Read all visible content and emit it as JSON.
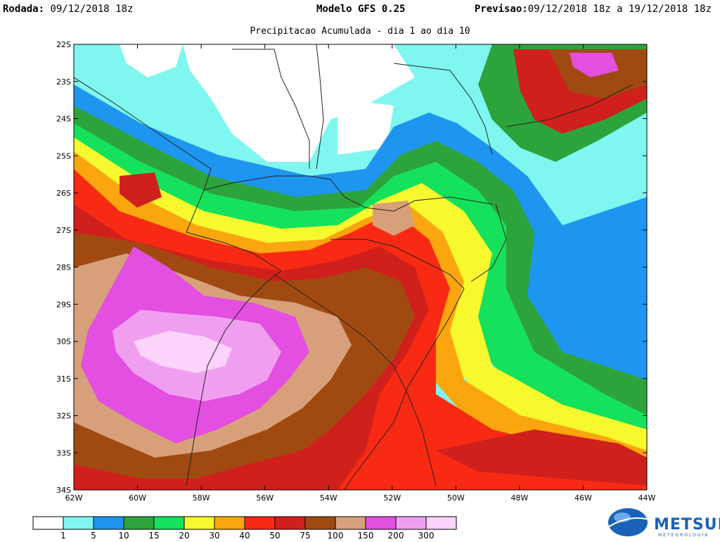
{
  "header": {
    "rodada_label": "Rodada:",
    "rodada_value": "09/12/2018 18z",
    "model_label": "Modelo GFS 0.25",
    "previsao_label": "Previsao:",
    "previsao_value": "09/12/2018 18z a 19/12/2018 18z",
    "subtitle": "Precipitacao Acumulada - dia 1 ao dia 10"
  },
  "axes": {
    "lat_labels": [
      "22S",
      "23S",
      "24S",
      "25S",
      "26S",
      "27S",
      "28S",
      "29S",
      "30S",
      "31S",
      "32S",
      "33S",
      "34S"
    ],
    "lon_labels": [
      "62W",
      "60W",
      "58W",
      "56W",
      "54W",
      "52W",
      "50W",
      "48W",
      "46W",
      "44W"
    ]
  },
  "legend": {
    "thresholds": [
      "1",
      "5",
      "10",
      "15",
      "20",
      "30",
      "40",
      "50",
      "75",
      "100",
      "150",
      "200",
      "300"
    ],
    "colors": [
      "#ffffff",
      "#7ff7f0",
      "#1e96f0",
      "#2da33c",
      "#16e15c",
      "#f8f82e",
      "#fba60e",
      "#f82a14",
      "#d0201c",
      "#a04a12",
      "#d8a07a",
      "#e34fe0",
      "#f09ff0",
      "#fbd3fb"
    ]
  },
  "brand": {
    "name": "METSUL",
    "tagline": "METEOROLOGIA",
    "colors": {
      "primary": "#1a62b8"
    }
  }
}
